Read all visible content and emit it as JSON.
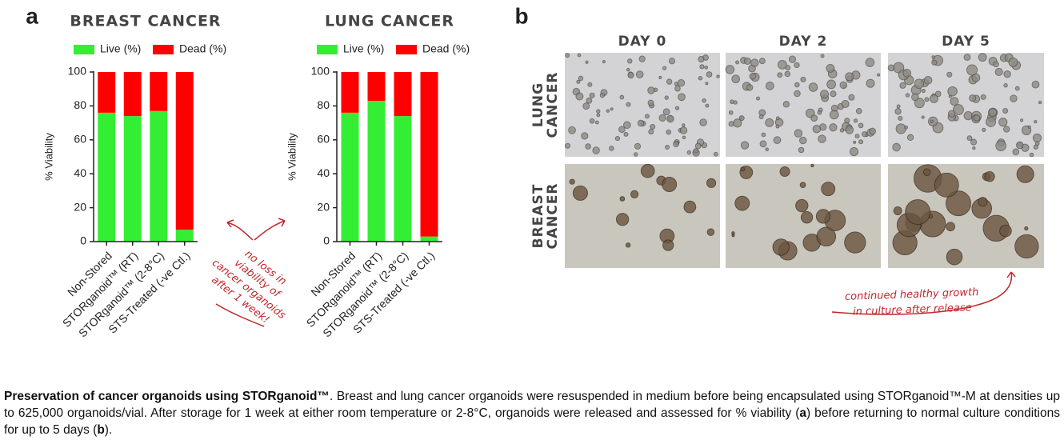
{
  "panel_a": {
    "label": "a"
  },
  "chart_data": [
    {
      "type": "bar",
      "stacked": true,
      "title": "BREAST CANCER",
      "ylabel": "% Viability",
      "categories": [
        "Non-Stored",
        "STORganoid™ (RT)",
        "STORganoid™ (2-8°C)",
        "STS-Treated (-ve Ctl.)"
      ],
      "series": [
        {
          "name": "Live (%)",
          "color": "#33ee33",
          "values": [
            76,
            74,
            77,
            7
          ]
        },
        {
          "name": "Dead (%)",
          "color": "#ff0000",
          "values": [
            24,
            26,
            23,
            93
          ]
        }
      ],
      "ylim": [
        0,
        100
      ],
      "yticks": [
        0,
        20,
        40,
        60,
        80,
        100
      ]
    },
    {
      "type": "bar",
      "stacked": true,
      "title": "LUNG CANCER",
      "ylabel": "% Viability",
      "categories": [
        "Non-Stored",
        "STORganoid™ (RT)",
        "STORganoid™ (2-8°C)",
        "STS-Treated (-ve Ctl.)"
      ],
      "series": [
        {
          "name": "Live (%)",
          "color": "#33ee33",
          "values": [
            76,
            83,
            74,
            3
          ]
        },
        {
          "name": "Dead (%)",
          "color": "#ff0000",
          "values": [
            24,
            17,
            26,
            97
          ]
        }
      ],
      "ylim": [
        0,
        100
      ],
      "yticks": [
        0,
        20,
        40,
        60,
        80,
        100
      ]
    }
  ],
  "annotation_a": [
    "no loss in",
    "viability of",
    "cancer organoids",
    "after 1 week!"
  ],
  "panel_b": {
    "label": "b",
    "columns": [
      "DAY 0",
      "DAY 2",
      "DAY 5"
    ],
    "rows": [
      [
        "LUNG",
        "CANCER"
      ],
      [
        "BREAST",
        "CANCER"
      ]
    ],
    "annotation": [
      "continued healthy growth",
      "in culture after release"
    ]
  },
  "caption": [
    {
      "text": "Preservation of cancer organoids using STORganoid™",
      "bold": true
    },
    {
      "text": ". Breast and lung cancer organoids were resuspended in medium before being encapsulated using STORganoid™-M at densities up to 625,000 organoids/vial. After storage for 1 week at either room temperature or 2-8°C, organoids were released and assessed for % viability (",
      "bold": false
    },
    {
      "text": "a",
      "bold": true
    },
    {
      "text": ") before returning to normal culture conditions for up to 5 days (",
      "bold": false
    },
    {
      "text": "b",
      "bold": true
    },
    {
      "text": ").",
      "bold": false
    }
  ]
}
